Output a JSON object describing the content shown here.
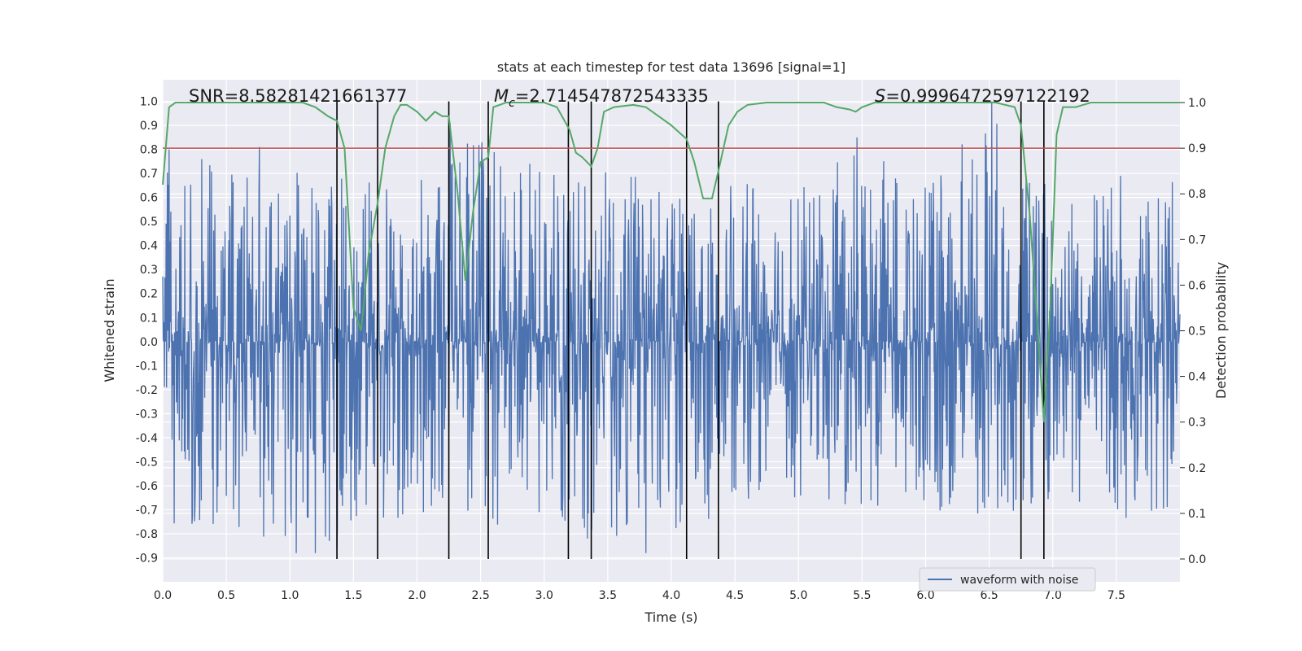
{
  "chart_data": {
    "type": "line",
    "title": "stats at each timestep for test data 13696 [signal=1]",
    "xlabel": "Time (s)",
    "ylabel": "Whitened strain",
    "y2label": "Detection probability",
    "xlim": [
      0,
      8
    ],
    "ylim": [
      -1.0,
      1.09
    ],
    "y2lim": [
      -0.05,
      1.05
    ],
    "x_ticks": [
      "0.0",
      "0.5",
      "1.0",
      "1.5",
      "2.0",
      "2.5",
      "3.0",
      "3.5",
      "4.0",
      "4.5",
      "5.0",
      "5.5",
      "6.0",
      "6.5",
      "7.0",
      "7.5"
    ],
    "y_ticks": [
      "1.0",
      "0.9",
      "0.8",
      "0.7",
      "0.6",
      "0.5",
      "0.4",
      "0.3",
      "0.2",
      "0.1",
      "0.0",
      "-0.1",
      "-0.2",
      "-0.3",
      "-0.4",
      "-0.5",
      "-0.6",
      "-0.7",
      "-0.8",
      "-0.9"
    ],
    "y2_ticks": [
      "1.0",
      "0.9",
      "0.8",
      "0.7",
      "0.6",
      "0.5",
      "0.4",
      "0.3",
      "0.2",
      "0.1",
      "0.0"
    ],
    "grid": true,
    "legend_position": "lower-right",
    "annotations": {
      "snr": "SNR=8.58281421661377",
      "mc_symbol": "M",
      "mc_sub": "c",
      "mc_value": "=2.714547872543335",
      "s_symbol": "S",
      "s_value": "=0.9996472597122192"
    },
    "threshold": {
      "axis": "right",
      "value": 0.9,
      "color": "#c44e52"
    },
    "vertical_lines_x": [
      1.37,
      1.69,
      2.25,
      2.56,
      3.19,
      3.37,
      4.12,
      4.37,
      6.75,
      6.93
    ],
    "vertical_lines_ymax": 1.0,
    "series": [
      {
        "name": "waveform with noise",
        "axis": "left",
        "color": "#4c72b0",
        "envelope_x": [
          0.0,
          0.5,
          1.0,
          1.5,
          2.0,
          2.5,
          3.0,
          3.5,
          4.0,
          4.5,
          5.0,
          5.5,
          6.0,
          6.5,
          7.0,
          7.5,
          8.0
        ],
        "envelope_max": [
          0.78,
          0.75,
          0.74,
          0.7,
          0.68,
          0.88,
          0.72,
          0.72,
          0.7,
          0.66,
          0.64,
          0.82,
          0.65,
          1.0,
          0.66,
          0.7,
          0.68
        ],
        "envelope_min": [
          -0.78,
          -0.78,
          -0.88,
          -0.8,
          -0.76,
          -0.78,
          -0.72,
          -0.82,
          -0.85,
          -0.72,
          -0.66,
          -0.7,
          -0.7,
          -0.72,
          -0.72,
          -0.74,
          -0.7
        ],
        "spikes": [
          [
            0.05,
            0.8
          ],
          [
            0.76,
            0.81
          ],
          [
            1.05,
            -0.88
          ],
          [
            1.2,
            -0.88
          ],
          [
            1.31,
            -0.83
          ],
          [
            1.37,
            -0.86
          ],
          [
            2.26,
            0.91
          ],
          [
            2.51,
            0.83
          ],
          [
            3.34,
            -0.82
          ],
          [
            3.8,
            -0.88
          ],
          [
            5.46,
            0.85
          ],
          [
            6.52,
            1.0
          ]
        ]
      },
      {
        "name": "",
        "axis": "right",
        "color": "#55a868",
        "x": [
          0.0,
          0.05,
          0.1,
          0.2,
          0.4,
          0.6,
          0.8,
          1.0,
          1.1,
          1.2,
          1.3,
          1.37,
          1.43,
          1.5,
          1.56,
          1.62,
          1.69,
          1.75,
          1.82,
          1.87,
          1.92,
          2.0,
          2.07,
          2.14,
          2.2,
          2.25,
          2.32,
          2.38,
          2.44,
          2.5,
          2.56,
          2.6,
          2.7,
          2.8,
          3.0,
          3.1,
          3.2,
          3.25,
          3.3,
          3.37,
          3.42,
          3.47,
          3.55,
          3.7,
          3.8,
          3.9,
          4.0,
          4.12,
          4.18,
          4.25,
          4.32,
          4.37,
          4.45,
          4.52,
          4.6,
          4.75,
          5.0,
          5.2,
          5.3,
          5.4,
          5.45,
          5.5,
          5.6,
          5.8,
          6.0,
          6.2,
          6.4,
          6.55,
          6.7,
          6.75,
          6.82,
          6.87,
          6.93,
          6.98,
          7.03,
          7.08,
          7.18,
          7.3,
          7.6,
          7.9,
          8.0
        ],
        "y": [
          0.82,
          0.99,
          1.0,
          1.0,
          1.0,
          1.0,
          1.0,
          1.0,
          1.0,
          0.99,
          0.97,
          0.96,
          0.9,
          0.55,
          0.5,
          0.67,
          0.78,
          0.9,
          0.97,
          0.995,
          0.995,
          0.98,
          0.96,
          0.98,
          0.97,
          0.97,
          0.8,
          0.61,
          0.76,
          0.87,
          0.88,
          0.99,
          1.0,
          1.0,
          1.0,
          0.99,
          0.94,
          0.89,
          0.88,
          0.86,
          0.9,
          0.98,
          0.99,
          0.995,
          0.99,
          0.97,
          0.95,
          0.92,
          0.87,
          0.79,
          0.79,
          0.85,
          0.95,
          0.98,
          0.995,
          1.0,
          1.0,
          1.0,
          0.99,
          0.985,
          0.98,
          0.99,
          1.0,
          1.0,
          1.0,
          1.0,
          1.0,
          1.0,
          0.99,
          0.95,
          0.75,
          0.55,
          0.3,
          0.55,
          0.93,
          0.99,
          0.99,
          1.0,
          1.0,
          1.0,
          1.0
        ]
      }
    ]
  }
}
